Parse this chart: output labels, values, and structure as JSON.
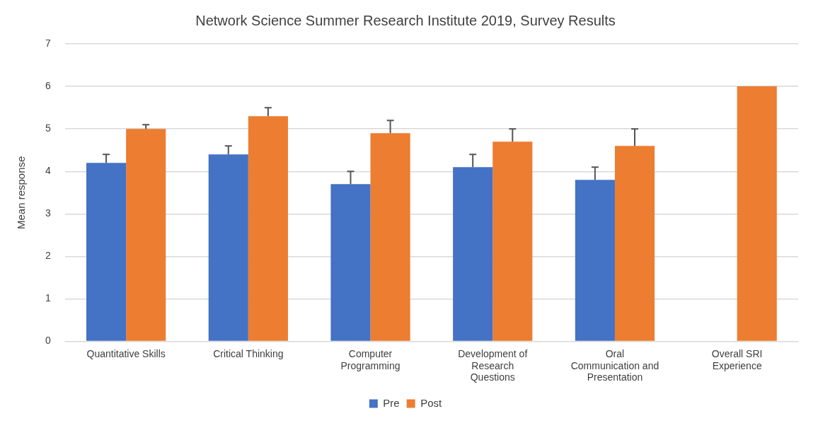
{
  "chart_data": {
    "type": "bar",
    "title": "Network Science Summer Research Institute 2019, Survey Results",
    "ylabel": "Mean response",
    "categories": [
      "Quantitative Skills",
      "Critical Thinking",
      "Computer Programming",
      "Development of Research Questions",
      "Oral Communication and Presentation",
      "Overall SRI Experience"
    ],
    "series": [
      {
        "name": "Pre",
        "color": "#4472c4",
        "values": [
          4.2,
          4.4,
          3.7,
          4.1,
          3.8,
          null
        ],
        "errors": [
          [
            4.2,
            4.4
          ],
          [
            4.4,
            4.6
          ],
          [
            3.7,
            4.0
          ],
          [
            4.1,
            4.4
          ],
          [
            3.8,
            4.1
          ],
          null
        ]
      },
      {
        "name": "Post",
        "color": "#ed7d31",
        "values": [
          5.0,
          5.3,
          4.9,
          4.7,
          4.6,
          6.0
        ],
        "errors": [
          [
            5.0,
            5.1
          ],
          [
            5.3,
            5.5
          ],
          [
            4.9,
            5.2
          ],
          [
            4.7,
            5.0
          ],
          [
            4.6,
            5.0
          ],
          null
        ]
      }
    ],
    "ylim": [
      0,
      7
    ],
    "yticks": [
      0,
      1,
      2,
      3,
      4,
      5,
      6,
      7
    ],
    "grid": "y",
    "legend": "bottom"
  }
}
